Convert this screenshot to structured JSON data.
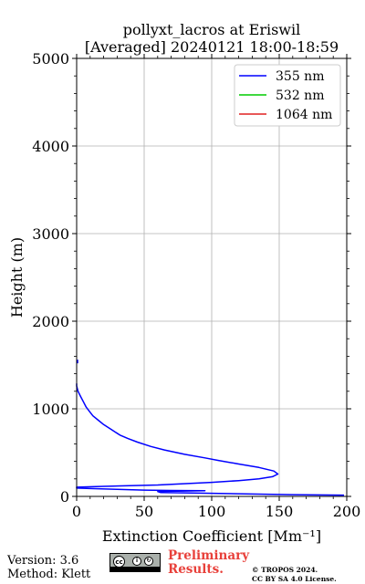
{
  "chart_data": {
    "type": "line",
    "title_line1": "pollyxt_lacros at Eriswil",
    "title_line2": "[Averaged] 20240121 18:00-18:59",
    "xlabel": "Extinction Coefficient [Mm⁻¹]",
    "ylabel": "Height (m)",
    "xlim": [
      0,
      200
    ],
    "ylim": [
      0,
      5000
    ],
    "xticks": [
      "0",
      "50",
      "100",
      "150",
      "200"
    ],
    "yticks": [
      "0",
      "1000",
      "2000",
      "3000",
      "4000",
      "5000"
    ],
    "grid": true,
    "legend_position": "top-right",
    "series": [
      {
        "name": "355 nm",
        "color": "#0000ff",
        "points": [
          [
            198,
            15
          ],
          [
            160,
            20
          ],
          [
            120,
            30
          ],
          [
            90,
            38
          ],
          [
            62,
            45
          ],
          [
            60,
            55
          ],
          [
            75,
            60
          ],
          [
            95,
            65
          ],
          [
            70,
            68
          ],
          [
            50,
            72
          ],
          [
            30,
            80
          ],
          [
            10,
            90
          ],
          [
            0,
            95
          ],
          [
            0,
            105
          ],
          [
            20,
            115
          ],
          [
            60,
            130
          ],
          [
            100,
            160
          ],
          [
            120,
            180
          ],
          [
            135,
            200
          ],
          [
            145,
            225
          ],
          [
            149,
            255
          ],
          [
            146,
            290
          ],
          [
            135,
            330
          ],
          [
            120,
            370
          ],
          [
            105,
            410
          ],
          [
            95,
            440
          ],
          [
            80,
            480
          ],
          [
            65,
            530
          ],
          [
            55,
            570
          ],
          [
            45,
            620
          ],
          [
            38,
            660
          ],
          [
            32,
            700
          ],
          [
            26,
            760
          ],
          [
            20,
            820
          ],
          [
            16,
            870
          ],
          [
            12,
            920
          ],
          [
            9,
            980
          ],
          [
            7,
            1020
          ],
          [
            5,
            1080
          ],
          [
            3,
            1140
          ],
          [
            1,
            1200
          ],
          [
            0,
            1260
          ],
          [
            0,
            1290
          ]
        ]
      },
      {
        "name": "532 nm",
        "color": "#00cc00",
        "points": []
      },
      {
        "name": "1064 nm",
        "color": "#e02020",
        "points": []
      }
    ],
    "extra_marks": [
      {
        "x": 0.5,
        "y": 1540
      }
    ]
  },
  "footer": {
    "version": "Version: 3.6",
    "method": "Method: Klett",
    "preliminary_1": "Preliminary",
    "preliminary_2": "Results.",
    "copyright_1": "© TROPOS 2024.",
    "copyright_2": "CC BY SA 4.0 License."
  },
  "license_badge": {
    "cc": "cc",
    "by": "i",
    "sa": "↻",
    "label_by": "BY",
    "label_sa": "SA"
  }
}
